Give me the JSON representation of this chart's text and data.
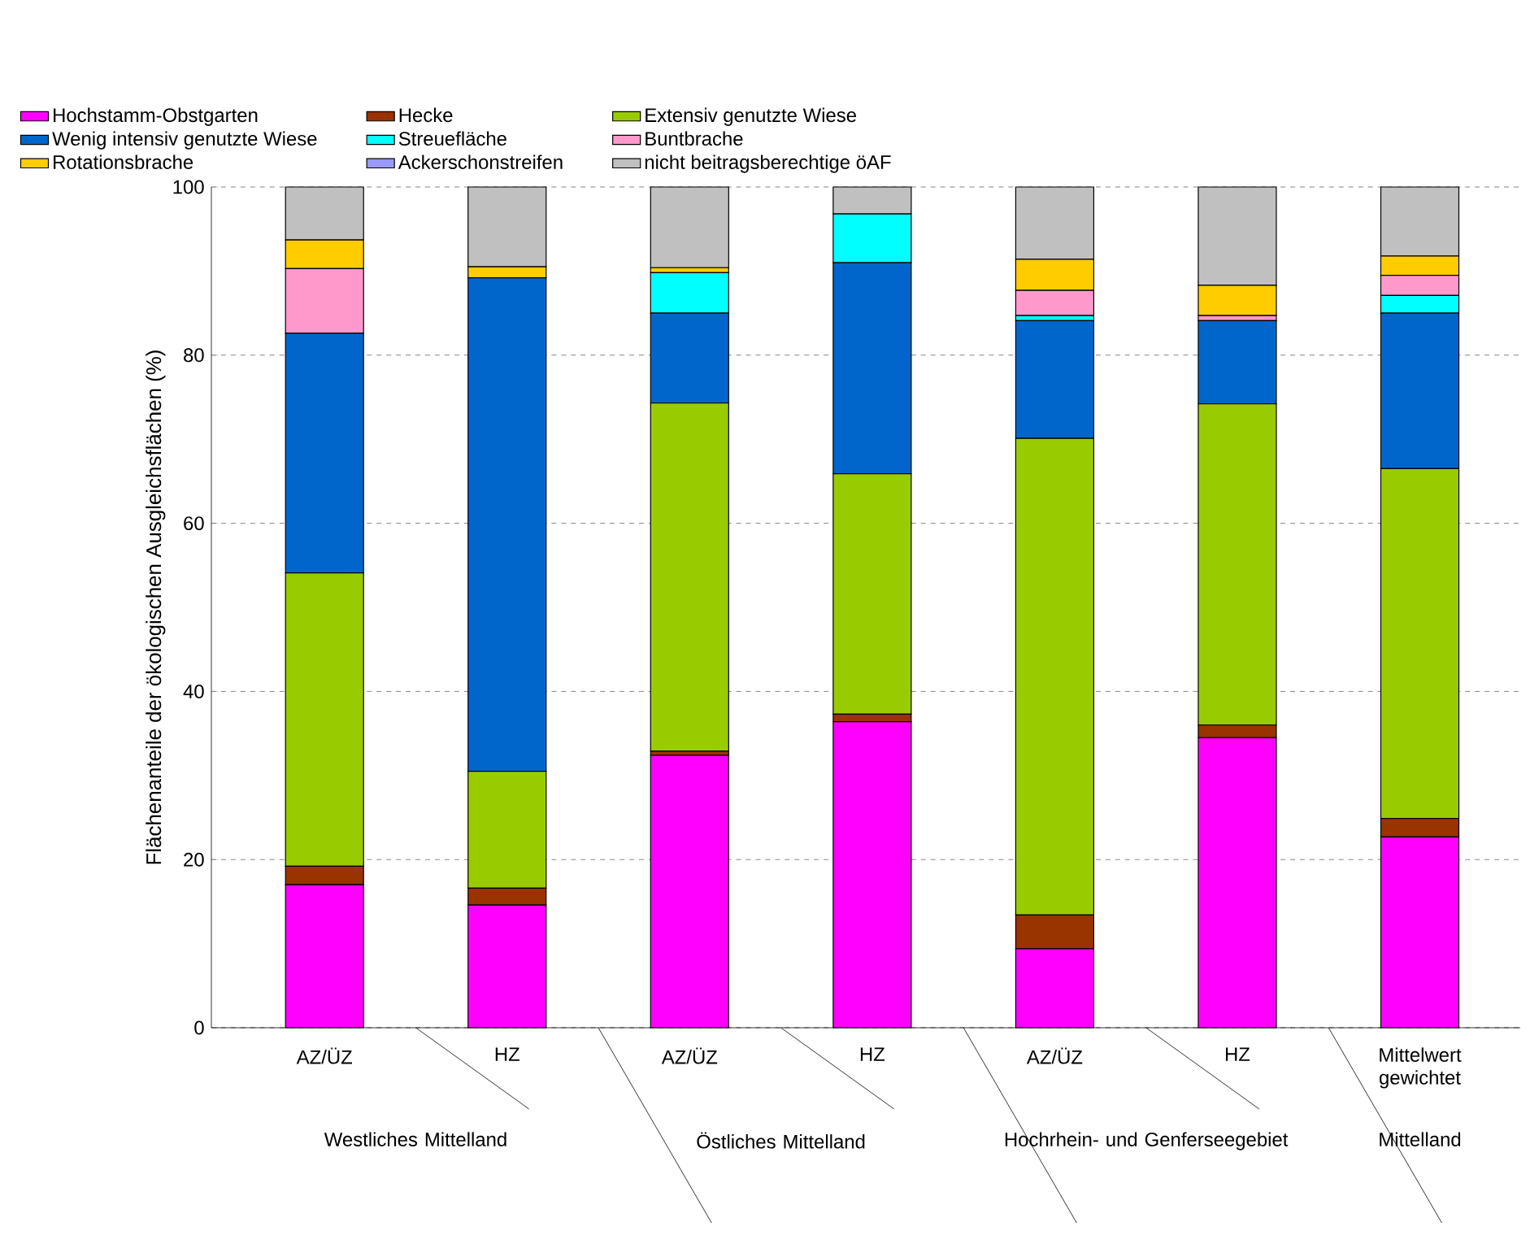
{
  "chart_data": {
    "type": "bar",
    "stacked": true,
    "ylabel": "Flächenanteile der ökologischen Ausgleichsflächen (%)",
    "categories": [
      "AZ/ÜZ",
      "HZ",
      "AZ/ÜZ",
      "HZ",
      "AZ/ÜZ",
      "HZ",
      "Mittelwert gewichtet"
    ],
    "annotations": [
      "Westliches Mittelland",
      "Östliches Mittelland",
      "Hochrhein- und Genferseegebiet",
      "Mittelland"
    ],
    "ylim": [
      0,
      100
    ],
    "yticks": [
      0,
      20,
      40,
      60,
      80,
      100
    ],
    "grid": "y",
    "legend": "top",
    "series": [
      {
        "name": "Hochstamm-Obstgarten",
        "color": "#ff00ff",
        "values": [
          17.0,
          14.6,
          32.4,
          36.4,
          9.4,
          34.5,
          22.7
        ]
      },
      {
        "name": "Hecke",
        "color": "#993300",
        "values": [
          2.2,
          2.0,
          0.5,
          0.9,
          4.0,
          1.5,
          2.2
        ]
      },
      {
        "name": "Extensiv genutzte Wiese",
        "color": "#99cc00",
        "values": [
          34.9,
          13.9,
          41.4,
          28.6,
          56.7,
          38.2,
          41.6
        ]
      },
      {
        "name": "Wenig  intensiv genutzte Wiese",
        "color": "#0066cc",
        "values": [
          28.5,
          58.7,
          10.7,
          25.1,
          14.0,
          9.9,
          18.5
        ]
      },
      {
        "name": "Streuefläche",
        "color": "#00ffff",
        "values": [
          0,
          0,
          4.8,
          5.8,
          0.6,
          0,
          2.1
        ]
      },
      {
        "name": "Buntbrache",
        "color": "#ff99cc",
        "values": [
          7.7,
          0,
          0,
          0,
          3.0,
          0.6,
          2.4
        ]
      },
      {
        "name": "Rotationsbrache",
        "color": "#ffcc00",
        "values": [
          3.4,
          1.3,
          0.6,
          0,
          3.7,
          3.6,
          2.3
        ]
      },
      {
        "name": "Ackerschonstreifen",
        "color": "#9999ff",
        "values": [
          0,
          0,
          0,
          0,
          0,
          0,
          0
        ]
      },
      {
        "name": "nicht beitragsberechtige öAF",
        "color": "#c0c0c0",
        "values": [
          6.3,
          9.5,
          9.6,
          3.2,
          8.6,
          11.7,
          8.2
        ]
      }
    ]
  }
}
